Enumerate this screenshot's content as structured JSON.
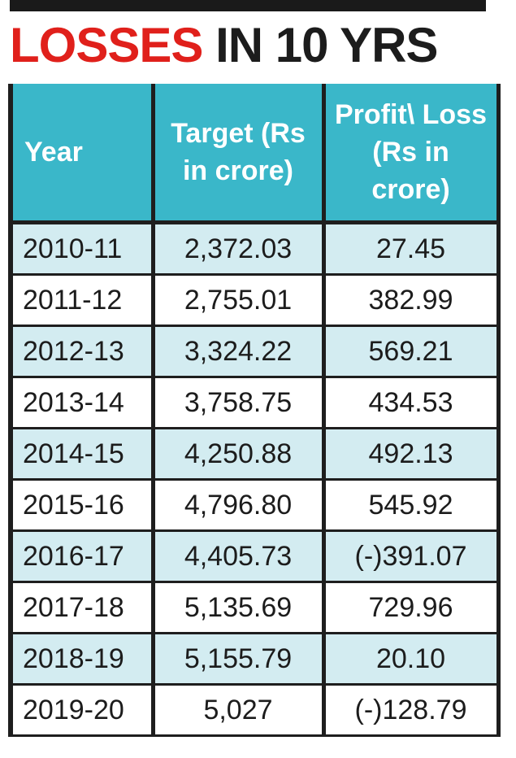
{
  "title": {
    "part1": "LOSSES",
    "part2": " IN 10 YRS"
  },
  "chart_data": {
    "type": "table",
    "title": "LOSSES IN 10 YRS",
    "columns": [
      "Year",
      "Target (Rs in crore)",
      "Profit\\ Loss (Rs in crore)"
    ],
    "rows": [
      [
        "2010-11",
        "2,372.03",
        "27.45"
      ],
      [
        "2011-12",
        "2,755.01",
        "382.99"
      ],
      [
        "2012-13",
        "3,324.22",
        "569.21"
      ],
      [
        "2013-14",
        "3,758.75",
        "434.53"
      ],
      [
        "2014-15",
        "4,250.88",
        "492.13"
      ],
      [
        "2015-16",
        "4,796.80",
        "545.92"
      ],
      [
        "2016-17",
        "4,405.73",
        "(-)391.07"
      ],
      [
        "2017-18",
        "5,135.69",
        "729.96"
      ],
      [
        "2018-19",
        "5,155.79",
        "20.10"
      ],
      [
        "2019-20",
        "5,027",
        "(-)128.79"
      ]
    ]
  },
  "colors": {
    "title_red": "#e0201b",
    "header_bg": "#3ab7c9",
    "row_shade": "#d3ecf1"
  }
}
